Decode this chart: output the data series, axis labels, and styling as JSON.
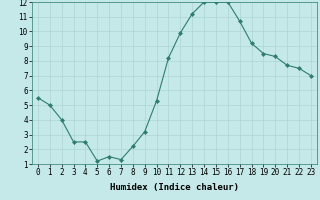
{
  "x": [
    0,
    1,
    2,
    3,
    4,
    5,
    6,
    7,
    8,
    9,
    10,
    11,
    12,
    13,
    14,
    15,
    16,
    17,
    18,
    19,
    20,
    21,
    22,
    23
  ],
  "y": [
    5.5,
    5.0,
    4.0,
    2.5,
    2.5,
    1.2,
    1.5,
    1.3,
    2.2,
    3.2,
    5.3,
    8.2,
    9.9,
    11.2,
    12.0,
    12.0,
    12.0,
    10.7,
    9.2,
    8.5,
    8.3,
    7.7,
    7.5,
    7.0
  ],
  "line_color": "#2e7d6e",
  "marker": "D",
  "marker_size": 2.0,
  "bg_color": "#c5e8e8",
  "grid_color": "#aed4d4",
  "xlabel": "Humidex (Indice chaleur)",
  "xlim": [
    -0.5,
    23.5
  ],
  "ylim": [
    1,
    12
  ],
  "xticks": [
    0,
    1,
    2,
    3,
    4,
    5,
    6,
    7,
    8,
    9,
    10,
    11,
    12,
    13,
    14,
    15,
    16,
    17,
    18,
    19,
    20,
    21,
    22,
    23
  ],
  "yticks": [
    1,
    2,
    3,
    4,
    5,
    6,
    7,
    8,
    9,
    10,
    11,
    12
  ],
  "tick_fontsize": 5.5,
  "xlabel_fontsize": 6.5
}
